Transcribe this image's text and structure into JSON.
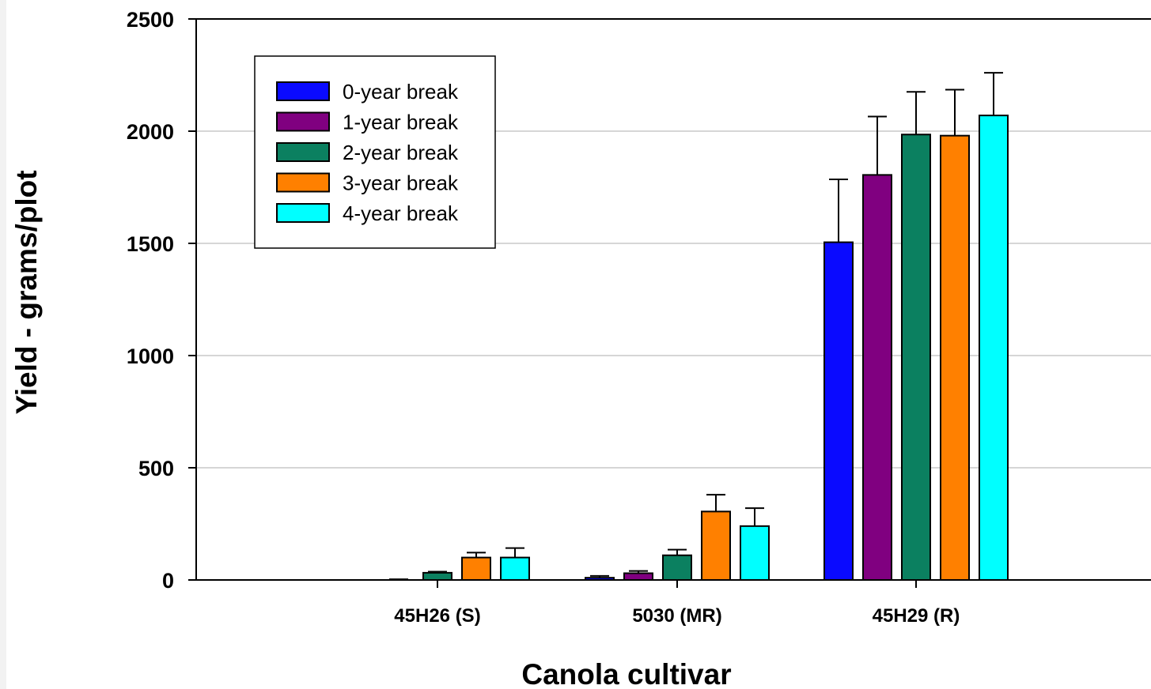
{
  "chart_data": {
    "type": "bar",
    "title": "",
    "xlabel": "Canola cultivar",
    "ylabel": "Yield - grams/plot",
    "ylim": [
      0,
      2500
    ],
    "yticks": [
      0,
      500,
      1000,
      1500,
      2000,
      2500
    ],
    "grid": true,
    "legend_position": "top-left",
    "categories": [
      "45H26 (S)",
      "5030 (MR)",
      "45H29 (R)"
    ],
    "series": [
      {
        "name": "0-year break",
        "color": "#0a0aff",
        "values": [
          0,
          10,
          1505
        ],
        "errors": [
          0,
          8,
          280
        ]
      },
      {
        "name": "1-year break",
        "color": "#800080",
        "values": [
          0,
          30,
          1805
        ],
        "errors": [
          3,
          10,
          260
        ]
      },
      {
        "name": "2-year break",
        "color": "#0b8060",
        "values": [
          32,
          110,
          1985
        ],
        "errors": [
          5,
          25,
          190
        ]
      },
      {
        "name": "3-year break",
        "color": "#ff8000",
        "values": [
          100,
          305,
          1980
        ],
        "errors": [
          22,
          75,
          205
        ]
      },
      {
        "name": "4-year break",
        "color": "#00ffff",
        "values": [
          100,
          240,
          2070
        ],
        "errors": [
          42,
          80,
          190
        ]
      }
    ]
  }
}
